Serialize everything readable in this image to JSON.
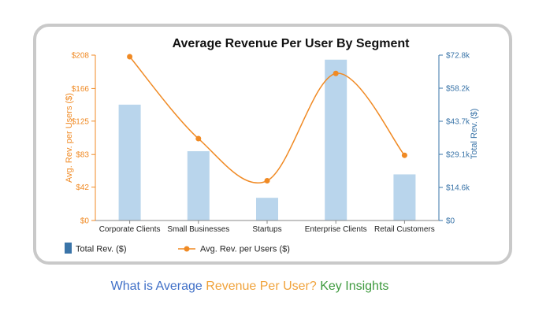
{
  "caption": {
    "part1": "What is Average",
    "part2": "Revenue Per User?",
    "part3": "Key Insights",
    "colors": {
      "part1": "#3f6fc7",
      "part2": "#f0a23a",
      "part3": "#3e9a3e"
    }
  },
  "chart_data": {
    "type": "bar",
    "title": "Average Revenue Per User By Segment",
    "categories": [
      "Corporate Clients",
      "Small Businesses",
      "Startups",
      "Enterprise Clients",
      "Retail Customers"
    ],
    "series": [
      {
        "name": "Total Rev. ($)",
        "type": "bar",
        "axis": "right",
        "color": "#b9d5ec",
        "values": [
          51000,
          30500,
          10000,
          70800,
          20300
        ]
      },
      {
        "name": "Avg. Rev. per Users ($)",
        "type": "line",
        "axis": "left",
        "color": "#f08a24",
        "values": [
          206,
          103,
          50,
          185,
          82
        ]
      }
    ],
    "left_axis": {
      "label": "Avg. Rev. per Users ($)",
      "color": "#f08a24",
      "range": [
        0,
        208
      ],
      "ticks": [
        0,
        42,
        83,
        125,
        166,
        208
      ],
      "tick_labels": [
        "$0",
        "$42",
        "$83",
        "$125",
        "$166",
        "$208"
      ]
    },
    "right_axis": {
      "label": "Total Rev. ($)",
      "color": "#3a74a8",
      "range": [
        0,
        72800
      ],
      "ticks": [
        0,
        14560,
        29120,
        43680,
        58240,
        72800
      ],
      "tick_labels": [
        "$0",
        "$14.6k",
        "$29.1k",
        "$43.7k",
        "$58.2k",
        "$72.8k"
      ]
    },
    "legend": {
      "placement": "bottom-left",
      "items": [
        "Total Rev. ($)",
        "Avg. Rev. per Users ($)"
      ]
    },
    "grid": false
  }
}
